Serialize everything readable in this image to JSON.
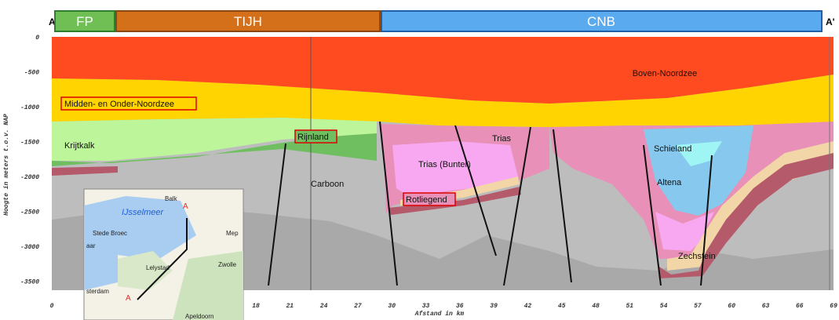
{
  "header": {
    "left_end": "A",
    "right_end": "A'",
    "zones": [
      "FP",
      "TIJH",
      "CNB"
    ]
  },
  "y_axis": {
    "label": "Hoogte in meters t.o.v. NAP",
    "ticks": [
      "0",
      "-500",
      "-1000",
      "-1500",
      "-2000",
      "-2500",
      "-3000",
      "-3500"
    ]
  },
  "x_axis": {
    "label": "Afstand in km",
    "ticks": [
      "0",
      "18",
      "21",
      "24",
      "27",
      "30",
      "33",
      "36",
      "39",
      "42",
      "45",
      "48",
      "51",
      "54",
      "57",
      "60",
      "63",
      "66",
      "69"
    ]
  },
  "layers": [
    "Boven-Noordzee",
    "Midden- en Onder-Noordzee",
    "Krijtkalk",
    "Rijnland",
    "Carboon",
    "Trias",
    "Trias (Bunter)",
    "Rotliegend",
    "Schieland",
    "Altena",
    "Zechstein"
  ],
  "map": {
    "labels": [
      "Balk",
      "IJsselmeer",
      "A",
      "Stede Broec",
      "Mep",
      "aar",
      "Lelystad",
      "Zwolle",
      "sterdam",
      "A",
      "Apeldoorn"
    ]
  }
}
